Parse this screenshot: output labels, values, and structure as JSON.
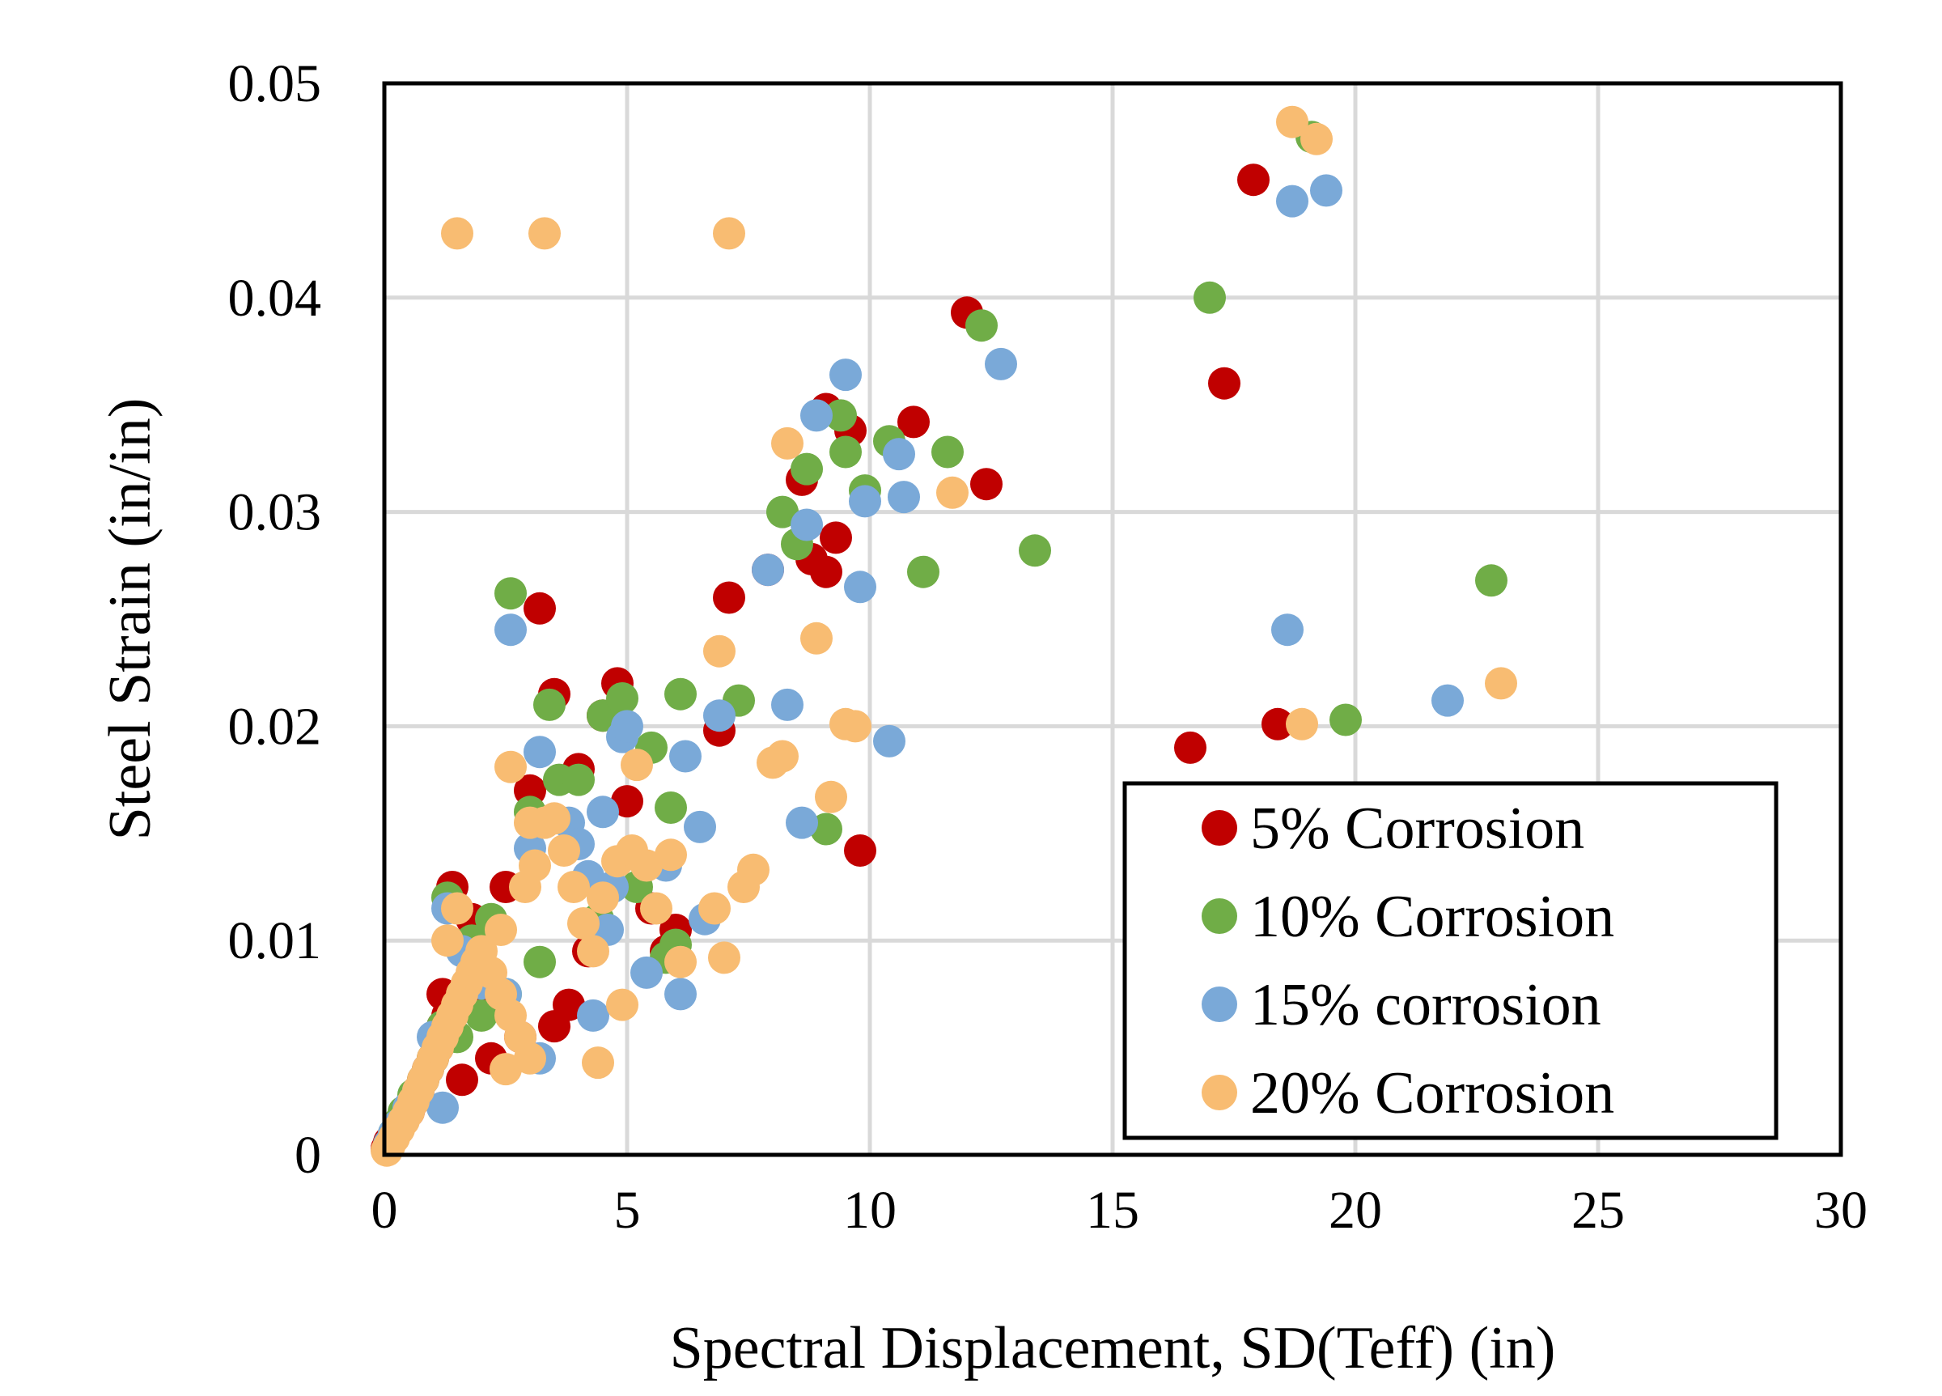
{
  "chart_data": {
    "type": "scatter",
    "title": "",
    "xlabel": "Spectral Displacement, SD(Teff) (in)",
    "ylabel": "Steel Strain (in/in)",
    "xlim": [
      0,
      30
    ],
    "ylim": [
      0,
      0.05
    ],
    "x_ticks": [
      0,
      5,
      10,
      15,
      20,
      25,
      30
    ],
    "x_tick_labels": [
      "0",
      "5",
      "10",
      "15",
      "20",
      "25",
      "30"
    ],
    "y_ticks": [
      0,
      0.01,
      0.02,
      0.03,
      0.04,
      0.05
    ],
    "y_tick_labels": [
      "0",
      "0.01",
      "0.02",
      "0.03",
      "0.04",
      "0.05"
    ],
    "grid": true,
    "legend_position": "bottom-right",
    "series": [
      {
        "name": "5% Corrosion",
        "color": "#c00000",
        "points": [
          [
            0.05,
            0.0003
          ],
          [
            0.1,
            0.0006
          ],
          [
            0.2,
            0.0009
          ],
          [
            0.3,
            0.0013
          ],
          [
            0.4,
            0.0017
          ],
          [
            0.5,
            0.002
          ],
          [
            0.6,
            0.0025
          ],
          [
            0.7,
            0.003
          ],
          [
            0.8,
            0.0035
          ],
          [
            0.9,
            0.004
          ],
          [
            1.0,
            0.0045
          ],
          [
            1.1,
            0.005
          ],
          [
            1.2,
            0.006
          ],
          [
            1.3,
            0.0065
          ],
          [
            1.5,
            0.007
          ],
          [
            1.8,
            0.0075
          ],
          [
            2.0,
            0.008
          ],
          [
            1.2,
            0.0075
          ],
          [
            1.4,
            0.0125
          ],
          [
            1.8,
            0.011
          ],
          [
            2.5,
            0.0125
          ],
          [
            3.0,
            0.017
          ],
          [
            3.5,
            0.0215
          ],
          [
            4.0,
            0.018
          ],
          [
            4.5,
            0.0205
          ],
          [
            4.8,
            0.022
          ],
          [
            5.0,
            0.0165
          ],
          [
            5.5,
            0.0115
          ],
          [
            5.8,
            0.0095
          ],
          [
            6.0,
            0.0105
          ],
          [
            3.2,
            0.0255
          ],
          [
            3.5,
            0.006
          ],
          [
            6.9,
            0.0198
          ],
          [
            7.1,
            0.026
          ],
          [
            7.9,
            0.0273
          ],
          [
            8.6,
            0.0315
          ],
          [
            8.8,
            0.0278
          ],
          [
            9.1,
            0.0272
          ],
          [
            9.3,
            0.0288
          ],
          [
            9.1,
            0.0348
          ],
          [
            9.6,
            0.0338
          ],
          [
            10.9,
            0.0342
          ],
          [
            12.0,
            0.0393
          ],
          [
            12.4,
            0.0313
          ],
          [
            9.8,
            0.0142
          ],
          [
            16.6,
            0.019
          ],
          [
            17.3,
            0.036
          ],
          [
            17.9,
            0.0455
          ],
          [
            18.4,
            0.0201
          ],
          [
            1.6,
            0.0035
          ],
          [
            2.2,
            0.0045
          ],
          [
            2.8,
            0.0055
          ],
          [
            3.8,
            0.007
          ],
          [
            4.2,
            0.0095
          ]
        ]
      },
      {
        "name": "10% Corrosion",
        "color": "#70ad47",
        "points": [
          [
            0.1,
            0.0005
          ],
          [
            0.2,
            0.001
          ],
          [
            0.3,
            0.0015
          ],
          [
            0.4,
            0.002
          ],
          [
            0.6,
            0.0028
          ],
          [
            0.8,
            0.0035
          ],
          [
            1.0,
            0.0045
          ],
          [
            1.2,
            0.006
          ],
          [
            1.3,
            0.012
          ],
          [
            1.8,
            0.01
          ],
          [
            2.2,
            0.011
          ],
          [
            2.6,
            0.0262
          ],
          [
            3.0,
            0.016
          ],
          [
            3.4,
            0.021
          ],
          [
            3.6,
            0.0175
          ],
          [
            4.0,
            0.0175
          ],
          [
            4.5,
            0.0205
          ],
          [
            4.9,
            0.0213
          ],
          [
            5.5,
            0.019
          ],
          [
            5.9,
            0.0162
          ],
          [
            6.1,
            0.0215
          ],
          [
            7.3,
            0.0212
          ],
          [
            6.0,
            0.0098
          ],
          [
            5.8,
            0.0092
          ],
          [
            8.2,
            0.03
          ],
          [
            8.5,
            0.0285
          ],
          [
            8.7,
            0.032
          ],
          [
            9.4,
            0.0345
          ],
          [
            9.5,
            0.0328
          ],
          [
            9.9,
            0.031
          ],
          [
            10.4,
            0.0333
          ],
          [
            11.1,
            0.0272
          ],
          [
            11.6,
            0.0328
          ],
          [
            12.3,
            0.0387
          ],
          [
            13.4,
            0.0282
          ],
          [
            9.1,
            0.0152
          ],
          [
            17.0,
            0.04
          ],
          [
            19.1,
            0.0475
          ],
          [
            19.8,
            0.0203
          ],
          [
            22.8,
            0.0268
          ],
          [
            1.5,
            0.0055
          ],
          [
            2.0,
            0.0065
          ],
          [
            2.5,
            0.0075
          ],
          [
            3.2,
            0.009
          ],
          [
            4.4,
            0.011
          ],
          [
            5.2,
            0.0125
          ]
        ]
      },
      {
        "name": "15% corrosion",
        "color": "#7aa9d8",
        "points": [
          [
            0.1,
            0.0005
          ],
          [
            0.2,
            0.001
          ],
          [
            0.3,
            0.0014
          ],
          [
            0.5,
            0.0022
          ],
          [
            0.7,
            0.003
          ],
          [
            0.9,
            0.004
          ],
          [
            1.0,
            0.0055
          ],
          [
            1.2,
            0.0022
          ],
          [
            1.3,
            0.0115
          ],
          [
            1.6,
            0.0095
          ],
          [
            2.0,
            0.008
          ],
          [
            2.5,
            0.0075
          ],
          [
            2.6,
            0.0245
          ],
          [
            3.0,
            0.0143
          ],
          [
            3.2,
            0.0188
          ],
          [
            3.2,
            0.0045
          ],
          [
            3.8,
            0.0155
          ],
          [
            4.0,
            0.0145
          ],
          [
            4.2,
            0.013
          ],
          [
            4.5,
            0.016
          ],
          [
            4.7,
            0.0125
          ],
          [
            4.9,
            0.0195
          ],
          [
            5.0,
            0.02
          ],
          [
            5.4,
            0.0085
          ],
          [
            5.8,
            0.0135
          ],
          [
            6.1,
            0.0075
          ],
          [
            6.2,
            0.0186
          ],
          [
            6.5,
            0.0153
          ],
          [
            6.6,
            0.011
          ],
          [
            6.9,
            0.0205
          ],
          [
            7.9,
            0.0273
          ],
          [
            8.3,
            0.021
          ],
          [
            8.6,
            0.0155
          ],
          [
            8.7,
            0.0294
          ],
          [
            8.9,
            0.0345
          ],
          [
            9.5,
            0.0364
          ],
          [
            9.8,
            0.0265
          ],
          [
            9.9,
            0.0305
          ],
          [
            10.4,
            0.0193
          ],
          [
            10.6,
            0.0327
          ],
          [
            10.7,
            0.0307
          ],
          [
            12.7,
            0.0369
          ],
          [
            18.7,
            0.0445
          ],
          [
            19.4,
            0.045
          ],
          [
            18.6,
            0.0245
          ],
          [
            21.9,
            0.0212
          ],
          [
            4.3,
            0.0065
          ],
          [
            4.6,
            0.0105
          ]
        ]
      },
      {
        "name": "20% Corrosion",
        "color": "#f8bc72",
        "points": [
          [
            0.05,
            0.0002
          ],
          [
            0.1,
            0.0004
          ],
          [
            0.2,
            0.0008
          ],
          [
            0.3,
            0.0012
          ],
          [
            0.4,
            0.0016
          ],
          [
            0.5,
            0.002
          ],
          [
            0.6,
            0.0025
          ],
          [
            0.7,
            0.003
          ],
          [
            0.8,
            0.0035
          ],
          [
            0.9,
            0.004
          ],
          [
            1.0,
            0.0045
          ],
          [
            1.1,
            0.005
          ],
          [
            1.2,
            0.0055
          ],
          [
            1.3,
            0.006
          ],
          [
            1.4,
            0.0065
          ],
          [
            1.5,
            0.007
          ],
          [
            1.6,
            0.0075
          ],
          [
            1.7,
            0.008
          ],
          [
            1.8,
            0.0085
          ],
          [
            1.9,
            0.009
          ],
          [
            2.0,
            0.0095
          ],
          [
            2.2,
            0.0085
          ],
          [
            2.4,
            0.0075
          ],
          [
            2.6,
            0.0065
          ],
          [
            2.8,
            0.0055
          ],
          [
            3.0,
            0.0045
          ],
          [
            2.5,
            0.004
          ],
          [
            1.5,
            0.0115
          ],
          [
            1.3,
            0.01
          ],
          [
            2.4,
            0.0105
          ],
          [
            2.6,
            0.0181
          ],
          [
            2.9,
            0.0125
          ],
          [
            3.0,
            0.0155
          ],
          [
            3.1,
            0.0135
          ],
          [
            3.3,
            0.0155
          ],
          [
            3.5,
            0.0157
          ],
          [
            3.7,
            0.0142
          ],
          [
            3.9,
            0.0125
          ],
          [
            4.1,
            0.0108
          ],
          [
            4.3,
            0.0095
          ],
          [
            4.5,
            0.012
          ],
          [
            4.4,
            0.0043
          ],
          [
            4.8,
            0.0137
          ],
          [
            4.9,
            0.007
          ],
          [
            5.1,
            0.0142
          ],
          [
            5.2,
            0.0182
          ],
          [
            5.4,
            0.0135
          ],
          [
            5.6,
            0.0115
          ],
          [
            5.9,
            0.014
          ],
          [
            6.1,
            0.009
          ],
          [
            6.8,
            0.0115
          ],
          [
            7.0,
            0.0092
          ],
          [
            6.9,
            0.0235
          ],
          [
            7.4,
            0.0125
          ],
          [
            7.6,
            0.0133
          ],
          [
            8.0,
            0.0183
          ],
          [
            8.2,
            0.0186
          ],
          [
            8.3,
            0.0332
          ],
          [
            8.9,
            0.0241
          ],
          [
            9.2,
            0.0167
          ],
          [
            9.5,
            0.0201
          ],
          [
            9.7,
            0.02
          ],
          [
            11.7,
            0.0309
          ],
          [
            18.9,
            0.0201
          ],
          [
            18.7,
            0.0482
          ],
          [
            19.2,
            0.0474
          ],
          [
            23.0,
            0.022
          ],
          [
            1.5,
            0.043
          ],
          [
            3.3,
            0.043
          ],
          [
            7.1,
            0.043
          ]
        ]
      }
    ]
  }
}
